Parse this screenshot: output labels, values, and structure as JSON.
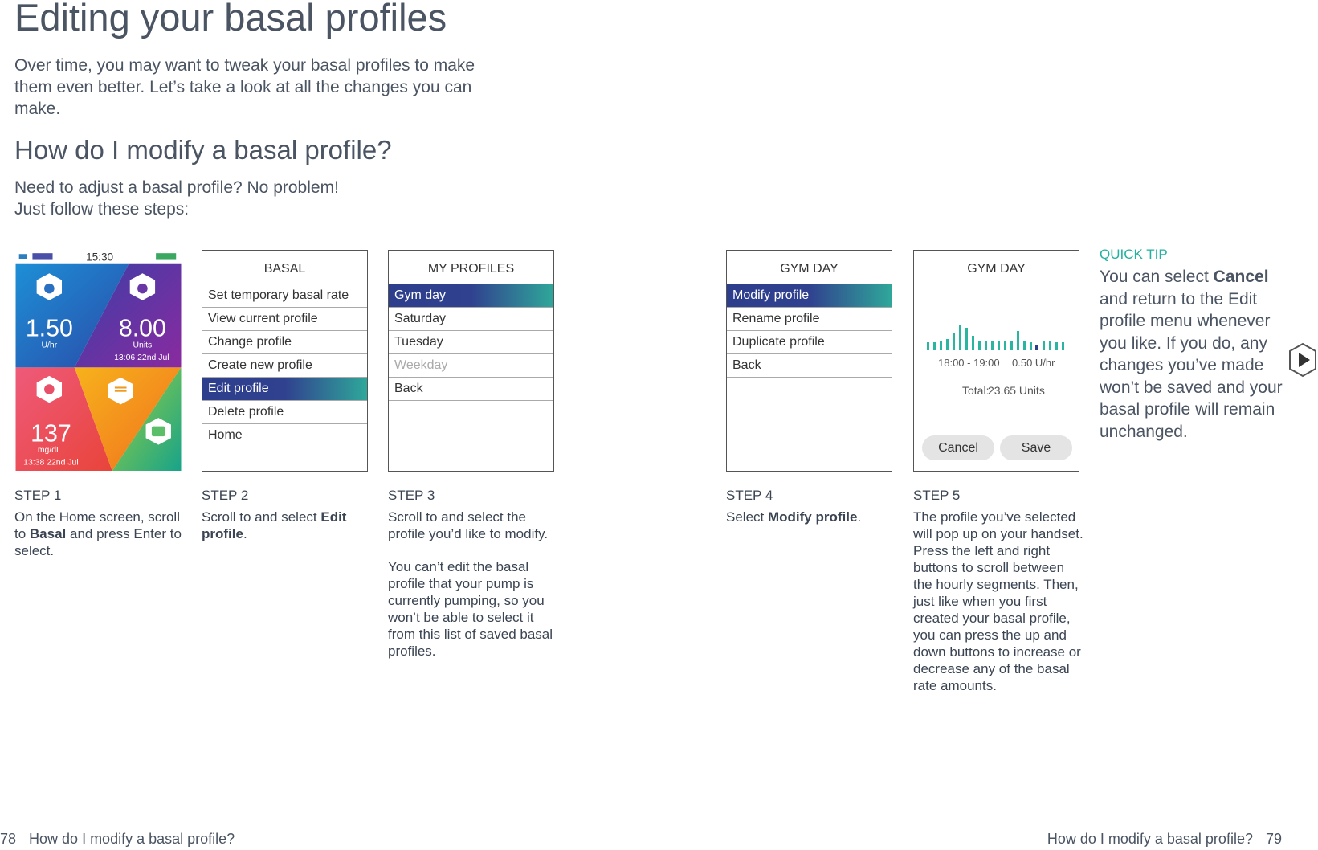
{
  "header": {
    "title": "Editing your basal profiles",
    "intro": "Over time, you may want to tweak your basal profiles to make them even better. Let’s take a look at all the changes you can make."
  },
  "section": {
    "heading": "How do I modify a basal profile?",
    "lines": [
      "Need to adjust a basal profile? No problem!",
      "Just follow these steps:"
    ]
  },
  "home_screen": {
    "time": "15:30",
    "rate": "1.50",
    "rate_unit": "U/hr",
    "insulin": "8.00",
    "insulin_unit": "Units",
    "insulin_time": "13:06   22nd Jul",
    "glucose": "137",
    "glucose_unit": "mg/dL",
    "glucose_time": "13:38   22nd Jul"
  },
  "menus": [
    {
      "title": "BASAL",
      "items": [
        "Set temporary basal rate",
        "View current profile",
        "Change profile",
        "Create new profile",
        "Edit profile",
        "Delete profile",
        "Home"
      ],
      "selected": 4
    },
    {
      "title": "MY PROFILES",
      "items": [
        "Gym day",
        "Saturday",
        "Tuesday",
        "Weekday",
        "Back"
      ],
      "selected": 0,
      "disabled": 3
    },
    {
      "title": "GYM DAY",
      "items": [
        "Modify profile",
        "Rename profile",
        "Duplicate profile",
        "Back"
      ],
      "selected": 0
    }
  ],
  "edit_screen": {
    "title": "GYM DAY",
    "segment": "18:00 - 19:00",
    "rate": "0.50 U/hr",
    "total_label": "Total:",
    "total": "23.65 Units",
    "cancel": "Cancel",
    "save": "Save"
  },
  "steps": [
    {
      "label": "STEP 1",
      "paragraphs": [
        [
          {
            "text": "On the Home screen, scroll to "
          },
          {
            "text": "Basal",
            "bold": true
          },
          {
            "text": " and press Enter to select."
          }
        ]
      ]
    },
    {
      "label": "STEP 2",
      "paragraphs": [
        [
          {
            "text": "Scroll to and select "
          },
          {
            "text": "Edit profile",
            "bold": true
          },
          {
            "text": "."
          }
        ]
      ]
    },
    {
      "label": "STEP 3",
      "paragraphs": [
        [
          {
            "text": "Scroll to and select the profile you’d like to modify."
          }
        ],
        [
          {
            "text": "You can’t edit the basal profile that your pump is currently pumping, so you won’t be able to select it from this list of saved basal profiles."
          }
        ]
      ]
    },
    {
      "label": "STEP 4",
      "paragraphs": [
        [
          {
            "text": "Select "
          },
          {
            "text": "Modify profile",
            "bold": true
          },
          {
            "text": "."
          }
        ]
      ]
    },
    {
      "label": "STEP 5",
      "paragraphs": [
        [
          {
            "text": "The profile you’ve selected will pop up on your handset. Press the left and right buttons to scroll between the hourly segments. Then, just like when you first created your basal profile, you can press the up and down buttons to increase or decrease any of the basal rate amounts."
          }
        ]
      ]
    }
  ],
  "quick_tip": {
    "label": "QUICK TIP",
    "segments": [
      {
        "text": "You can select "
      },
      {
        "text": "Cancel",
        "bold": true
      },
      {
        "text": " and return to the Edit profile menu whenever you like. If you do, any changes you’ve made won’t be saved and your basal profile will remain unchanged."
      }
    ]
  },
  "footer": {
    "left_page": "78",
    "left_title": "How do I modify a basal profile?",
    "right_title": "How do I modify a basal profile?",
    "right_page": "79"
  }
}
